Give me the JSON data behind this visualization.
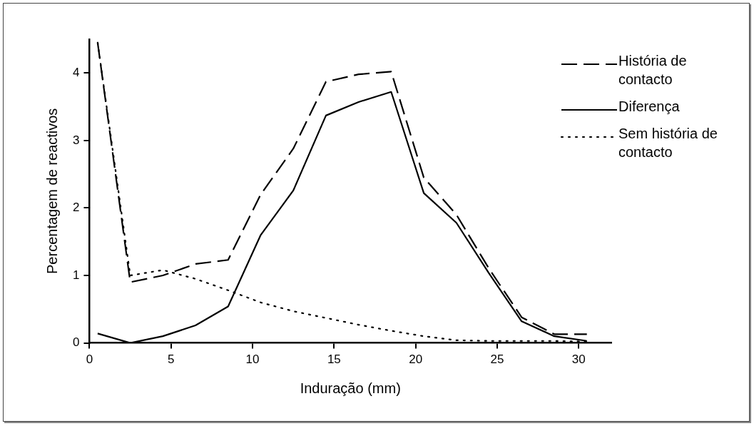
{
  "chart_data": {
    "type": "line",
    "xlabel": "Induração (mm)",
    "ylabel": "Percentagem de reactivos",
    "x": [
      0.5,
      2.5,
      4.5,
      6.5,
      8.5,
      10.5,
      12.5,
      14.5,
      16.5,
      18.5,
      20.5,
      22.5,
      24.5,
      26.5,
      28.5,
      30.5
    ],
    "series": [
      {
        "name": "História de contacto",
        "color": "#000000",
        "line_style": "dashed",
        "values": [
          4.45,
          0.9,
          1.0,
          1.17,
          1.23,
          2.2,
          2.88,
          3.87,
          3.98,
          4.02,
          2.45,
          1.9,
          1.1,
          0.38,
          0.13,
          0.13
        ]
      },
      {
        "name": "Diferença",
        "color": "#000000",
        "line_style": "solid",
        "values": [
          0.14,
          0,
          0.1,
          0.26,
          0.54,
          1.6,
          2.26,
          3.37,
          3.57,
          3.72,
          2.22,
          1.78,
          1.03,
          0.32,
          0.1,
          0.03
        ]
      },
      {
        "name": "Sem história de contacto",
        "color": "#000000",
        "line_style": "dotted",
        "values": [
          4.45,
          1.0,
          1.08,
          0.95,
          0.78,
          0.6,
          0.47,
          0.37,
          0.27,
          0.18,
          0.1,
          0.04,
          0.03,
          0.03,
          0.03,
          0.02
        ]
      }
    ],
    "xlim": [
      0,
      32
    ],
    "xticks": [
      0,
      5,
      10,
      15,
      20,
      25,
      30
    ],
    "ylim": [
      0,
      4.5
    ],
    "yticks": [
      0,
      1,
      2,
      3,
      4
    ],
    "grid": false,
    "legend": "top right",
    "marker": "none"
  }
}
